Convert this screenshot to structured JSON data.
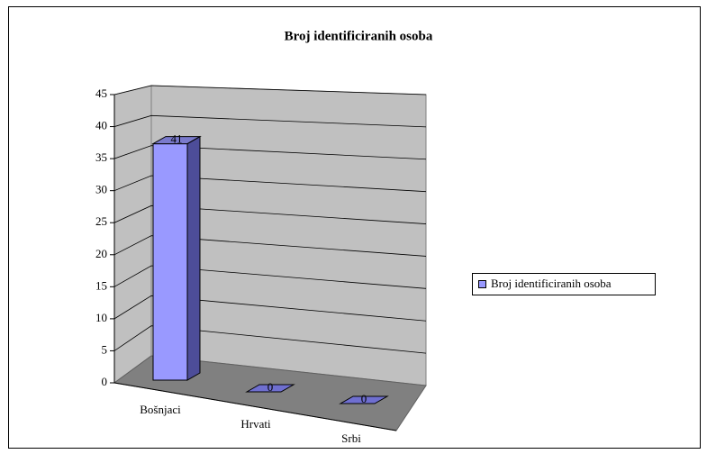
{
  "chart_data": {
    "type": "bar",
    "title": "Broj identificiranih osoba",
    "categories": [
      "Bošnjaci",
      "Hrvati",
      "Srbi"
    ],
    "series": [
      {
        "name": "Broj identificiranih osoba",
        "color": "#9999ff",
        "values": [
          41,
          0,
          0
        ]
      }
    ],
    "ylim": [
      0,
      45
    ],
    "yticks": [
      0,
      5,
      10,
      15,
      20,
      25,
      30,
      35,
      40,
      45
    ],
    "grid": true,
    "legend": "right"
  }
}
